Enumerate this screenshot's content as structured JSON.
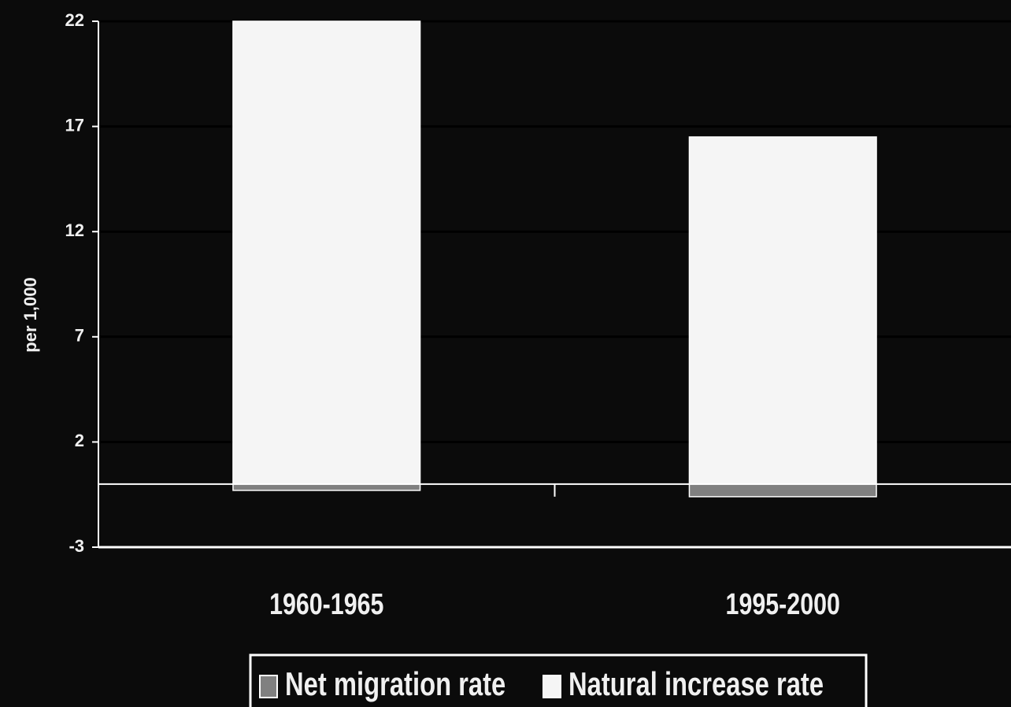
{
  "chart_data": {
    "type": "stacked_bar",
    "y_label": "per 1,000",
    "categories": [
      "1960-1965",
      "1995-2000"
    ],
    "series": [
      {
        "name": "Net migration rate",
        "color": "#808080",
        "values": [
          -0.3,
          -0.6
        ]
      },
      {
        "name": "Natural increase rate",
        "color": "#f5f5f5",
        "values": [
          22,
          16.5
        ]
      }
    ],
    "ylim": [
      -3,
      22
    ],
    "yticks": [
      -3,
      2,
      7,
      12,
      17,
      22
    ],
    "grid": true,
    "legend": "bottom"
  }
}
